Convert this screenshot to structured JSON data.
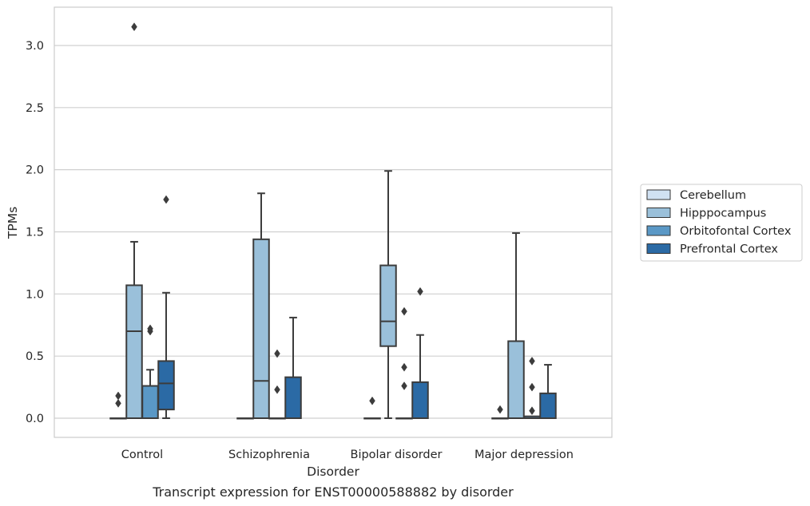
{
  "chart_data": {
    "type": "box",
    "caption": "Transcript expression for ENST00000588882 by disorder",
    "xlabel": "Disorder",
    "ylabel": "TPMs",
    "ylim": [
      -0.15,
      3.3
    ],
    "yticks": [
      "0.0",
      "0.5",
      "1.0",
      "1.5",
      "2.0",
      "2.5",
      "3.0"
    ],
    "grid": "horizontal",
    "legend_position": "right",
    "categories": [
      "Control",
      "Schizophrenia",
      "Bipolar disorder",
      "Major depression"
    ],
    "series": [
      {
        "name": "Cerebellum",
        "color": "#d0e1f2",
        "boxes": [
          {
            "q1": 0,
            "median": 0,
            "q3": 0,
            "whisker_low": 0,
            "whisker_high": 0,
            "outliers": [
              0.12,
              0.18
            ]
          },
          {
            "q1": 0,
            "median": 0,
            "q3": 0,
            "whisker_low": 0,
            "whisker_high": 0,
            "outliers": []
          },
          {
            "q1": 0,
            "median": 0,
            "q3": 0,
            "whisker_low": 0,
            "whisker_high": 0,
            "outliers": [
              0.14
            ]
          },
          {
            "q1": 0,
            "median": 0,
            "q3": 0,
            "whisker_low": 0,
            "whisker_high": 0,
            "outliers": [
              0.07
            ]
          }
        ]
      },
      {
        "name": "Hipppocampus",
        "color": "#9ac0da",
        "boxes": [
          {
            "q1": 0,
            "median": 0.7,
            "q3": 1.07,
            "whisker_low": 0,
            "whisker_high": 1.42,
            "outliers": [
              3.15
            ]
          },
          {
            "q1": 0,
            "median": 0.3,
            "q3": 1.44,
            "whisker_low": 0,
            "whisker_high": 1.81,
            "outliers": []
          },
          {
            "q1": 0.58,
            "median": 0.78,
            "q3": 1.23,
            "whisker_low": 0,
            "whisker_high": 1.99,
            "outliers": []
          },
          {
            "q1": 0,
            "median": 0,
            "q3": 0.62,
            "whisker_low": 0,
            "whisker_high": 1.49,
            "outliers": []
          }
        ]
      },
      {
        "name": "Orbitofontal Cortex",
        "color": "#5a98c6",
        "boxes": [
          {
            "q1": 0,
            "median": 0,
            "q3": 0.26,
            "whisker_low": 0,
            "whisker_high": 0.39,
            "outliers": [
              0.7,
              0.72
            ]
          },
          {
            "q1": 0,
            "median": 0,
            "q3": 0,
            "whisker_low": 0,
            "whisker_high": 0,
            "outliers": [
              0.23,
              0.52
            ]
          },
          {
            "q1": 0,
            "median": 0,
            "q3": 0,
            "whisker_low": 0,
            "whisker_high": 0,
            "outliers": [
              0.26,
              0.41,
              0.86
            ]
          },
          {
            "q1": 0,
            "median": 0,
            "q3": 0.015,
            "whisker_low": 0,
            "whisker_high": 0.015,
            "outliers": [
              0.06,
              0.25,
              0.46
            ]
          }
        ]
      },
      {
        "name": "Prefrontal Cortex",
        "color": "#2b6aa5",
        "boxes": [
          {
            "q1": 0.07,
            "median": 0.28,
            "q3": 0.46,
            "whisker_low": 0,
            "whisker_high": 1.01,
            "outliers": [
              1.76
            ]
          },
          {
            "q1": 0,
            "median": 0,
            "q3": 0.33,
            "whisker_low": 0,
            "whisker_high": 0.81,
            "outliers": []
          },
          {
            "q1": 0,
            "median": 0,
            "q3": 0.29,
            "whisker_low": 0,
            "whisker_high": 0.67,
            "outliers": [
              1.02
            ]
          },
          {
            "q1": 0,
            "median": 0,
            "q3": 0.2,
            "whisker_low": 0,
            "whisker_high": 0.43,
            "outliers": []
          }
        ]
      }
    ]
  }
}
